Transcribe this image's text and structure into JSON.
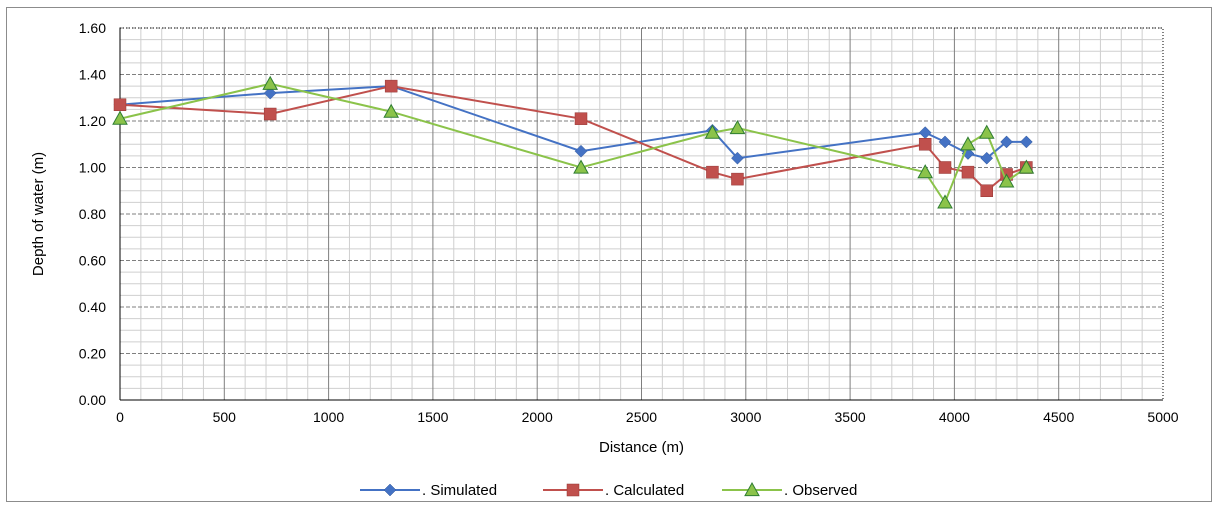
{
  "chart_data": {
    "type": "line",
    "xlabel": "Distance  (m)",
    "ylabel": "Depth  of  water  (m)",
    "xlim": [
      0,
      5000
    ],
    "ylim": [
      0,
      1.6
    ],
    "x_ticks": [
      0,
      500,
      1000,
      1500,
      2000,
      2500,
      3000,
      3500,
      4000,
      4500,
      5000
    ],
    "y_ticks": [
      "0.00",
      "0.20",
      "0.40",
      "0.60",
      "0.80",
      "1.00",
      "1.20",
      "1.40",
      "1.60"
    ],
    "grid": true,
    "legend_position": "bottom",
    "series": [
      {
        "name": ". Simulated",
        "color": "#4472C4",
        "marker": "diamond",
        "points": [
          [
            0,
            1.27
          ],
          [
            720,
            1.32
          ],
          [
            1300,
            1.35
          ],
          [
            2210,
            1.07
          ],
          [
            2840,
            1.16
          ],
          [
            2960,
            1.04
          ],
          [
            3860,
            1.15
          ],
          [
            3955,
            1.11
          ],
          [
            4065,
            1.06
          ],
          [
            4155,
            1.04
          ],
          [
            4250,
            1.11
          ],
          [
            4345,
            1.11
          ]
        ]
      },
      {
        "name": ". Calculated",
        "color": "#C0504D",
        "marker": "square",
        "points": [
          [
            0,
            1.27
          ],
          [
            720,
            1.23
          ],
          [
            1300,
            1.35
          ],
          [
            2210,
            1.21
          ],
          [
            2840,
            0.98
          ],
          [
            2960,
            0.95
          ],
          [
            3860,
            1.1
          ],
          [
            3955,
            1.0
          ],
          [
            4065,
            0.98
          ],
          [
            4155,
            0.9
          ],
          [
            4250,
            0.97
          ],
          [
            4345,
            1.0
          ]
        ]
      },
      {
        "name": ". Observed",
        "color": "#8BC34A",
        "marker": "triangle",
        "points": [
          [
            0,
            1.21
          ],
          [
            720,
            1.36
          ],
          [
            1300,
            1.24
          ],
          [
            2210,
            1.0
          ],
          [
            2840,
            1.15
          ],
          [
            2960,
            1.17
          ],
          [
            3860,
            0.98
          ],
          [
            3955,
            0.85
          ],
          [
            4065,
            1.1
          ],
          [
            4155,
            1.15
          ],
          [
            4250,
            0.94
          ],
          [
            4345,
            1.0
          ]
        ]
      }
    ]
  }
}
